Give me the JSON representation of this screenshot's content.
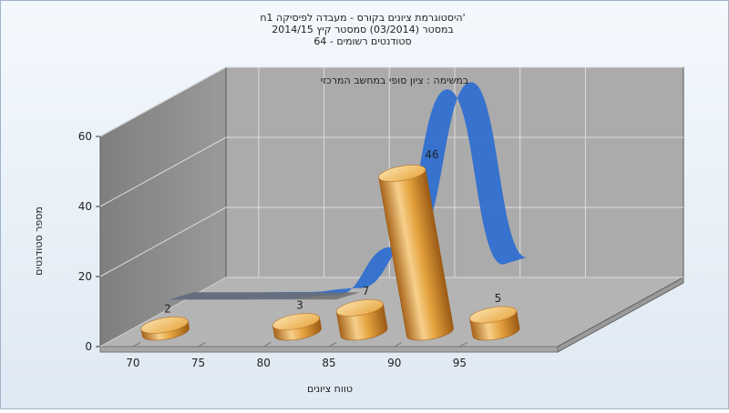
{
  "chart_data": {
    "type": "bar",
    "title_lines": [
      "היסטוגרמת ציונים בקורס - מעבדה לפיסיקה 1ח'",
      "במסטר  (03/2014)  סמסטר קיץ  2014/15",
      "סטודנטים רשומים - 64"
    ],
    "subtitle": "במשימה : ציון סופי במחשב המרכזי",
    "xlabel": "טווח ציונים",
    "ylabel": "מספר סטודנטים",
    "x_ticks": [
      "70",
      "75",
      "80",
      "85",
      "90",
      "95"
    ],
    "y_ticks": [
      "0",
      "20",
      "40",
      "60"
    ],
    "ylim": [
      0,
      60
    ],
    "grid": true,
    "bars": [
      {
        "x": 70,
        "value": 2,
        "label": "2"
      },
      {
        "x": 80,
        "value": 3,
        "label": "3"
      },
      {
        "x": 85,
        "value": 7,
        "label": "7"
      },
      {
        "x": 90,
        "value": 46,
        "label": "46"
      },
      {
        "x": 95,
        "value": 5,
        "label": "5"
      }
    ],
    "curve": {
      "x": [
        70,
        75,
        80,
        85,
        90,
        95,
        100
      ],
      "y": [
        0,
        0,
        0.1,
        1.2,
        15,
        60,
        10
      ]
    },
    "colors": {
      "bar": "#E8A33A",
      "curve": "#2F6FD0",
      "back_wall": "#ABABAB",
      "side_wall": "#8C8C8C",
      "floor": "#B4B4B4"
    }
  }
}
